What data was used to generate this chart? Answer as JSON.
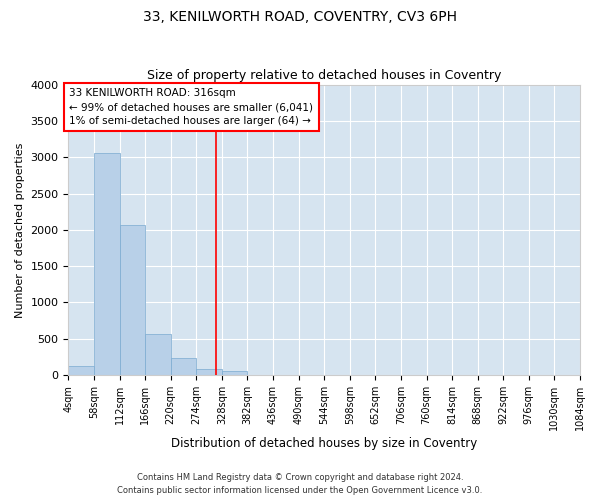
{
  "title": "33, KENILWORTH ROAD, COVENTRY, CV3 6PH",
  "subtitle": "Size of property relative to detached houses in Coventry",
  "xlabel": "Distribution of detached houses by size in Coventry",
  "ylabel": "Number of detached properties",
  "footer_line1": "Contains HM Land Registry data © Crown copyright and database right 2024.",
  "footer_line2": "Contains public sector information licensed under the Open Government Licence v3.0.",
  "bar_color": "#b8d0e8",
  "bar_edge_color": "#7aaad0",
  "background_color": "#d6e4f0",
  "fig_background_color": "#ffffff",
  "grid_color": "#ffffff",
  "red_line_x": 316,
  "annotation_line1": "33 KENILWORTH ROAD: 316sqm",
  "annotation_line2": "← 99% of detached houses are smaller (6,041)",
  "annotation_line3": "1% of semi-detached houses are larger (64) →",
  "bin_edges": [
    4,
    58,
    112,
    166,
    220,
    274,
    328,
    382,
    436,
    490,
    544,
    598,
    652,
    706,
    760,
    814,
    868,
    922,
    976,
    1030,
    1084
  ],
  "bar_heights": [
    120,
    3060,
    2070,
    560,
    230,
    80,
    50,
    0,
    0,
    0,
    0,
    0,
    0,
    0,
    0,
    0,
    0,
    0,
    0,
    0
  ],
  "ylim": [
    0,
    4000
  ],
  "yticks": [
    0,
    500,
    1000,
    1500,
    2000,
    2500,
    3000,
    3500,
    4000
  ]
}
